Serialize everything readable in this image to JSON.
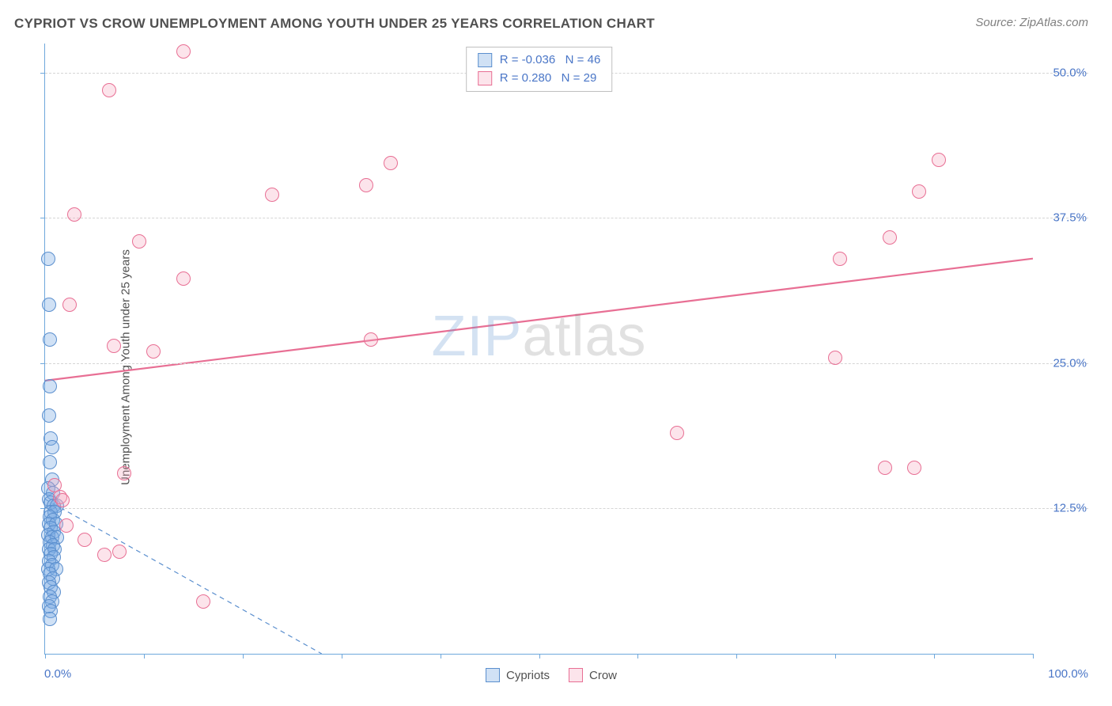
{
  "header": {
    "title": "CYPRIOT VS CROW UNEMPLOYMENT AMONG YOUTH UNDER 25 YEARS CORRELATION CHART",
    "source_prefix": "Source: ",
    "source_name": "ZipAtlas.com"
  },
  "watermark": {
    "part1": "ZIP",
    "part2": "atlas"
  },
  "chart": {
    "type": "scatter",
    "ylabel": "Unemployment Among Youth under 25 years",
    "xlim": [
      0,
      100
    ],
    "ylim": [
      0,
      52.5
    ],
    "x_ticks": [
      0,
      10,
      20,
      30,
      40,
      50,
      60,
      70,
      80,
      90,
      100
    ],
    "x_tick_labels": {
      "0": "0.0%",
      "100": "100.0%"
    },
    "y_gridlines": [
      12.5,
      25.0,
      37.5,
      50.0
    ],
    "y_tick_labels": [
      "12.5%",
      "25.0%",
      "37.5%",
      "50.0%"
    ],
    "grid_color": "#d5d5d5",
    "axis_color": "#6fa8dc",
    "label_color": "#4a76c7",
    "background_color": "#ffffff",
    "marker_radius": 9,
    "series": [
      {
        "name": "Cypriots",
        "fill": "rgba(121,168,225,0.35)",
        "stroke": "#5b8fce",
        "trend": {
          "x1": 0,
          "y1": 13.3,
          "x2": 28,
          "y2": 0,
          "dash": "6 5",
          "width": 1.2,
          "color": "#5b8fce"
        },
        "points": [
          [
            0.3,
            34.0
          ],
          [
            0.4,
            30.0
          ],
          [
            0.5,
            27.0
          ],
          [
            0.5,
            23.0
          ],
          [
            0.4,
            20.5
          ],
          [
            0.6,
            18.5
          ],
          [
            0.7,
            17.8
          ],
          [
            0.5,
            16.5
          ],
          [
            0.7,
            15.0
          ],
          [
            0.3,
            14.2
          ],
          [
            0.8,
            13.8
          ],
          [
            0.4,
            13.3
          ],
          [
            0.6,
            13.0
          ],
          [
            0.9,
            12.7
          ],
          [
            1.2,
            12.7
          ],
          [
            0.6,
            12.2
          ],
          [
            1.0,
            12.2
          ],
          [
            0.5,
            11.8
          ],
          [
            0.8,
            11.5
          ],
          [
            0.4,
            11.2
          ],
          [
            1.1,
            11.2
          ],
          [
            0.6,
            10.8
          ],
          [
            0.9,
            10.5
          ],
          [
            0.3,
            10.2
          ],
          [
            0.7,
            10.0
          ],
          [
            1.2,
            10.0
          ],
          [
            0.5,
            9.6
          ],
          [
            0.8,
            9.3
          ],
          [
            0.4,
            9.0
          ],
          [
            1.0,
            9.0
          ],
          [
            0.6,
            8.6
          ],
          [
            0.9,
            8.3
          ],
          [
            0.4,
            8.0
          ],
          [
            0.7,
            7.6
          ],
          [
            0.3,
            7.3
          ],
          [
            1.1,
            7.3
          ],
          [
            0.5,
            6.9
          ],
          [
            0.8,
            6.5
          ],
          [
            0.4,
            6.1
          ],
          [
            0.6,
            5.7
          ],
          [
            0.9,
            5.3
          ],
          [
            0.5,
            4.9
          ],
          [
            0.7,
            4.5
          ],
          [
            0.4,
            4.1
          ],
          [
            0.6,
            3.7
          ],
          [
            0.5,
            3.0
          ]
        ]
      },
      {
        "name": "Crow",
        "fill": "rgba(244,166,188,0.30)",
        "stroke": "#e86f94",
        "trend": {
          "x1": 0,
          "y1": 23.5,
          "x2": 100,
          "y2": 34.0,
          "dash": "",
          "width": 2.2,
          "color": "#e86f94"
        },
        "points": [
          [
            14.0,
            51.8
          ],
          [
            6.5,
            48.5
          ],
          [
            3.0,
            37.8
          ],
          [
            9.5,
            35.5
          ],
          [
            2.5,
            30.0
          ],
          [
            14.0,
            32.3
          ],
          [
            23.0,
            39.5
          ],
          [
            32.5,
            40.3
          ],
          [
            35.0,
            42.2
          ],
          [
            33.0,
            27.0
          ],
          [
            7.0,
            26.5
          ],
          [
            11.0,
            26.0
          ],
          [
            64.0,
            19.0
          ],
          [
            80.0,
            25.5
          ],
          [
            80.5,
            34.0
          ],
          [
            85.5,
            35.8
          ],
          [
            85.0,
            16.0
          ],
          [
            88.0,
            16.0
          ],
          [
            88.5,
            39.8
          ],
          [
            90.5,
            42.5
          ],
          [
            1.0,
            14.5
          ],
          [
            1.5,
            13.5
          ],
          [
            1.8,
            13.2
          ],
          [
            2.2,
            11.0
          ],
          [
            4.0,
            9.8
          ],
          [
            6.0,
            8.5
          ],
          [
            7.5,
            8.8
          ],
          [
            8.0,
            15.5
          ],
          [
            16.0,
            4.5
          ]
        ]
      }
    ],
    "legend_top": [
      {
        "swatch_fill": "rgba(121,168,225,0.35)",
        "swatch_stroke": "#5b8fce",
        "r_label": "R =",
        "r_value": "-0.036",
        "n_label": "N =",
        "n_value": "46"
      },
      {
        "swatch_fill": "rgba(244,166,188,0.30)",
        "swatch_stroke": "#e86f94",
        "r_label": "R =",
        "r_value": " 0.280",
        "n_label": "N =",
        "n_value": "29"
      }
    ],
    "legend_bottom": [
      {
        "swatch_fill": "rgba(121,168,225,0.35)",
        "swatch_stroke": "#5b8fce",
        "label": "Cypriots"
      },
      {
        "swatch_fill": "rgba(244,166,188,0.30)",
        "swatch_stroke": "#e86f94",
        "label": "Crow"
      }
    ]
  }
}
